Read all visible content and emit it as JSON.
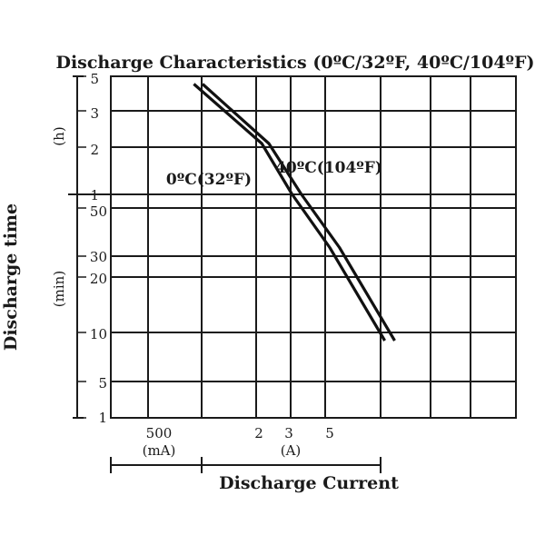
{
  "chart_data": {
    "type": "line",
    "title": "Discharge Characteristics  (0ºC/32ºF, 40ºC/104ºF)",
    "xlabel": "Discharge Current",
    "ylabel": "Discharge time",
    "x_unit_groups": [
      "(mA)",
      "(A)"
    ],
    "y_unit_groups": [
      "(h)",
      "(min)"
    ],
    "x_tick_labels": [
      "500",
      "2",
      "3",
      "5"
    ],
    "y_tick_labels_hours": [
      "5",
      "3",
      "2",
      "1"
    ],
    "y_tick_labels_minutes": [
      "50",
      "30",
      "20",
      "10",
      "5",
      "1"
    ],
    "grid": true,
    "series": [
      {
        "name": "0ºC(32ºF)",
        "points": [
          {
            "x_a": 0.8,
            "t_min": 270
          },
          {
            "x_a": 2.0,
            "t_min": 120
          },
          {
            "x_a": 3.0,
            "t_min": 60
          },
          {
            "x_a": 5.0,
            "t_min": 30
          },
          {
            "x_a": 10.5,
            "t_min": 9
          }
        ]
      },
      {
        "name": "40ºC(104ºF)",
        "points": [
          {
            "x_a": 0.9,
            "t_min": 270
          },
          {
            "x_a": 2.2,
            "t_min": 120
          },
          {
            "x_a": 3.4,
            "t_min": 60
          },
          {
            "x_a": 5.7,
            "t_min": 30
          },
          {
            "x_a": 12.0,
            "t_min": 9
          }
        ]
      }
    ]
  }
}
